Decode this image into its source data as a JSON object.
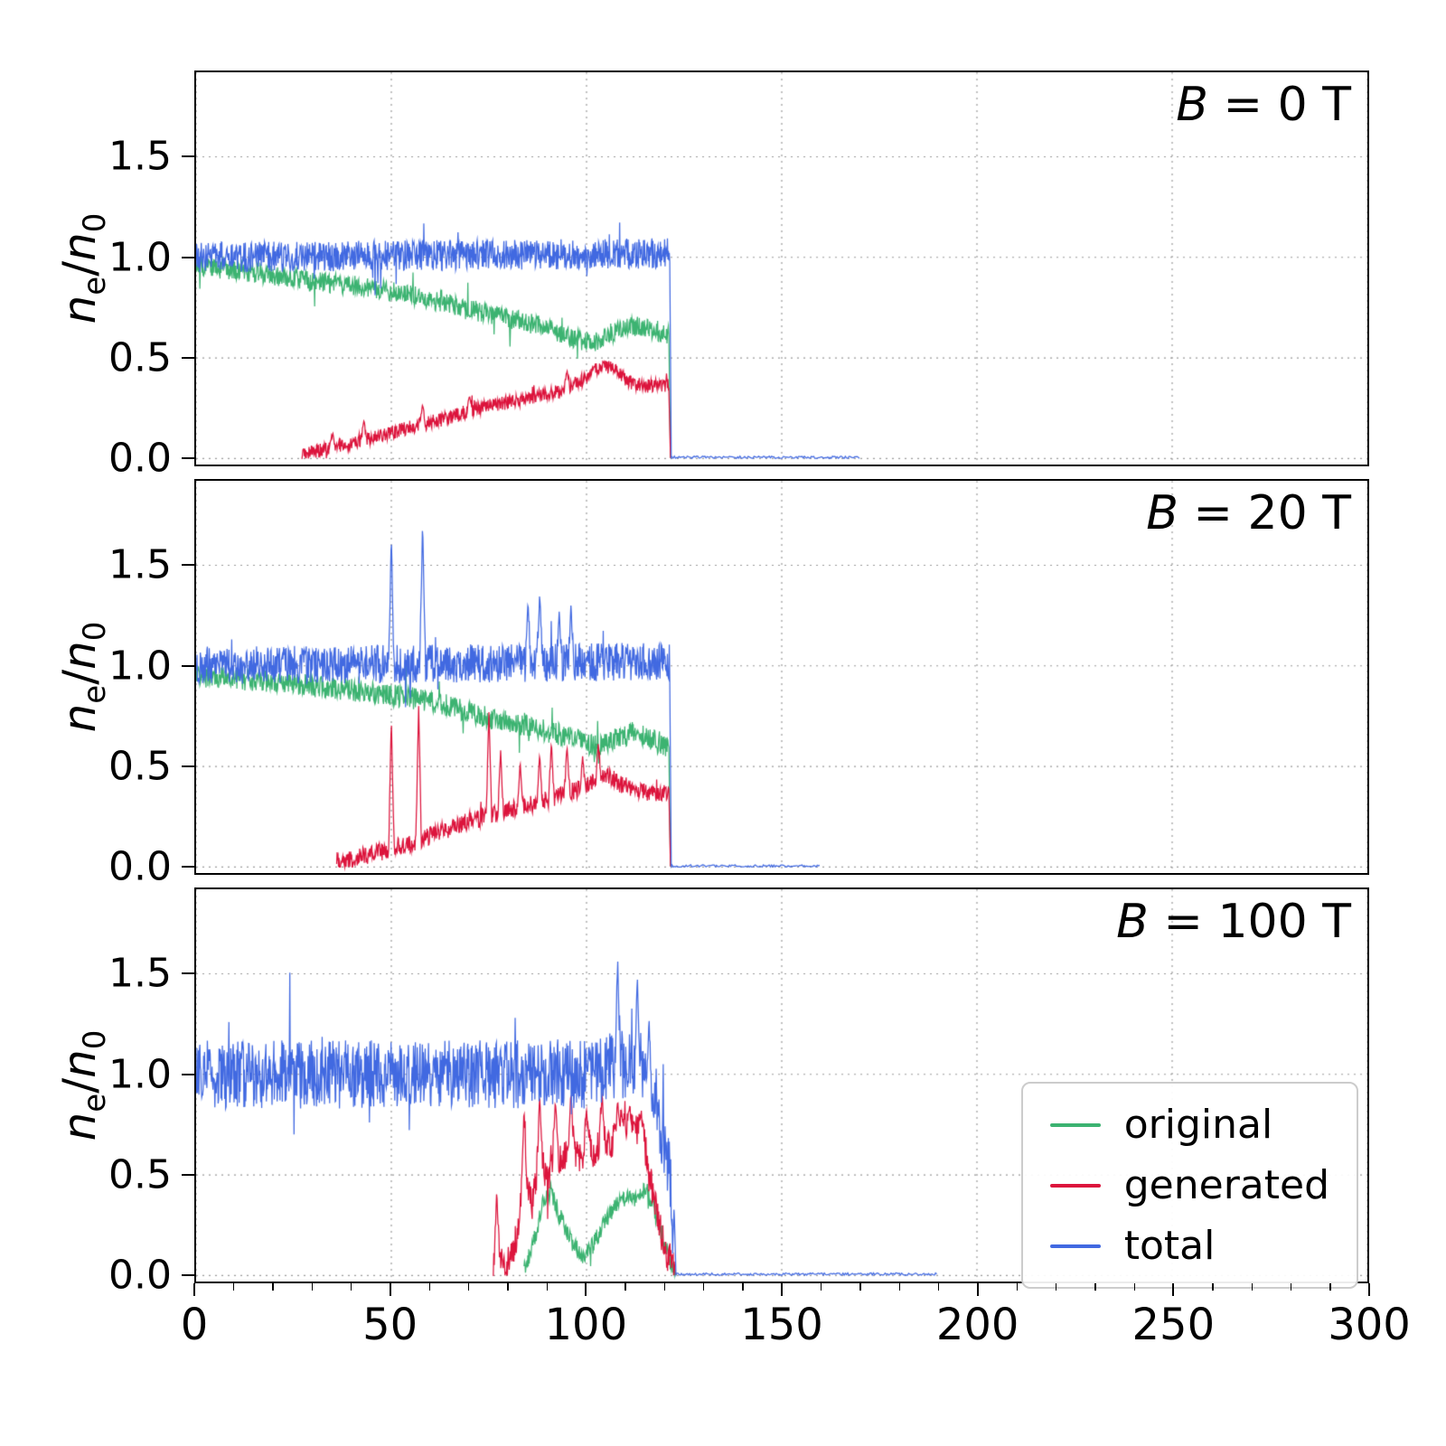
{
  "chart_data": {
    "type": "line",
    "title": "",
    "xlabel": "",
    "ylabel": {
      "n1": "n",
      "s1": "e",
      "sep": "/",
      "n2": "n",
      "s2": "0"
    },
    "xlim": [
      0,
      300
    ],
    "ylim": [
      -0.03,
      1.92
    ],
    "x_ticks": [
      0,
      50,
      100,
      150,
      200,
      250,
      300
    ],
    "x_minor_step": 10,
    "y_ticks": [
      0.0,
      0.5,
      1.0,
      1.5
    ],
    "grid": "dotted",
    "legend_position": "lower-right-of-bottom-panel",
    "legend": [
      {
        "label": "original",
        "color": "#3cb371"
      },
      {
        "label": "generated",
        "color": "#dc143c"
      },
      {
        "label": "total",
        "color": "#4169e1"
      }
    ],
    "panels": [
      {
        "annotation_var": "B",
        "annotation_rest": " = 0 T",
        "series": [
          {
            "name": "original",
            "color": "#3cb371",
            "start": 0,
            "cutoff": 121.2,
            "noise": 0.05,
            "envelope": [
              [
                0,
                0.96
              ],
              [
                15,
                0.92
              ],
              [
                30,
                0.88
              ],
              [
                45,
                0.85
              ],
              [
                60,
                0.79
              ],
              [
                75,
                0.72
              ],
              [
                88,
                0.66
              ],
              [
                96,
                0.6
              ],
              [
                101,
                0.57
              ],
              [
                106,
                0.62
              ],
              [
                112,
                0.66
              ],
              [
                117,
                0.64
              ],
              [
                121,
                0.62
              ]
            ],
            "spikes": []
          },
          {
            "name": "generated",
            "color": "#dc143c",
            "start": 27,
            "cutoff": 121.2,
            "noise": 0.035,
            "envelope": [
              [
                27,
                0.01
              ],
              [
                33,
                0.05
              ],
              [
                40,
                0.08
              ],
              [
                48,
                0.12
              ],
              [
                56,
                0.16
              ],
              [
                64,
                0.2
              ],
              [
                72,
                0.25
              ],
              [
                80,
                0.28
              ],
              [
                88,
                0.31
              ],
              [
                95,
                0.35
              ],
              [
                100,
                0.4
              ],
              [
                104,
                0.47
              ],
              [
                107,
                0.44
              ],
              [
                111,
                0.38
              ],
              [
                115,
                0.36
              ],
              [
                121,
                0.37
              ]
            ],
            "spikes": [
              [
                35,
                0.13
              ],
              [
                43,
                0.19
              ],
              [
                58,
                0.27
              ],
              [
                70,
                0.31
              ],
              [
                95,
                0.44
              ]
            ]
          },
          {
            "name": "total",
            "color": "#4169e1",
            "start": 0,
            "cutoff": 121.4,
            "noise": 0.075,
            "envelope": [
              [
                0,
                1.0
              ],
              [
                121,
                1.02
              ]
            ],
            "spikes": [],
            "tail": {
              "to": 170,
              "level": 0.006
            }
          }
        ]
      },
      {
        "annotation_var": "B",
        "annotation_rest": " = 20 T",
        "series": [
          {
            "name": "original",
            "color": "#3cb371",
            "start": 0,
            "cutoff": 121.2,
            "noise": 0.055,
            "envelope": [
              [
                0,
                0.95
              ],
              [
                20,
                0.92
              ],
              [
                40,
                0.88
              ],
              [
                55,
                0.84
              ],
              [
                65,
                0.8
              ],
              [
                75,
                0.74
              ],
              [
                85,
                0.7
              ],
              [
                95,
                0.65
              ],
              [
                102,
                0.6
              ],
              [
                107,
                0.63
              ],
              [
                112,
                0.67
              ],
              [
                117,
                0.63
              ],
              [
                121,
                0.58
              ]
            ],
            "spikes": []
          },
          {
            "name": "generated",
            "color": "#dc143c",
            "start": 36,
            "cutoff": 121.2,
            "noise": 0.045,
            "envelope": [
              [
                36,
                0.01
              ],
              [
                42,
                0.05
              ],
              [
                48,
                0.08
              ],
              [
                55,
                0.12
              ],
              [
                62,
                0.17
              ],
              [
                70,
                0.23
              ],
              [
                78,
                0.27
              ],
              [
                86,
                0.31
              ],
              [
                94,
                0.36
              ],
              [
                100,
                0.4
              ],
              [
                105,
                0.46
              ],
              [
                109,
                0.41
              ],
              [
                113,
                0.38
              ],
              [
                117,
                0.37
              ],
              [
                121,
                0.36
              ]
            ],
            "spikes": [
              [
                50,
                0.74
              ],
              [
                57,
                0.8
              ],
              [
                75,
                0.77
              ],
              [
                78,
                0.58
              ],
              [
                83,
                0.52
              ],
              [
                88,
                0.56
              ],
              [
                91,
                0.62
              ],
              [
                95,
                0.6
              ],
              [
                99,
                0.55
              ],
              [
                103,
                0.62
              ]
            ]
          },
          {
            "name": "total",
            "color": "#4169e1",
            "start": 0,
            "cutoff": 121.4,
            "noise": 0.095,
            "envelope": [
              [
                0,
                1.0
              ],
              [
                121,
                1.02
              ]
            ],
            "spikes": [
              [
                50,
                1.64
              ],
              [
                58,
                1.71
              ],
              [
                85,
                1.32
              ],
              [
                88,
                1.36
              ],
              [
                93,
                1.27
              ],
              [
                96,
                1.3
              ]
            ],
            "tail": {
              "to": 160,
              "level": 0.005
            }
          }
        ]
      },
      {
        "annotation_var": "B",
        "annotation_rest": " = 100 T",
        "series": [
          {
            "name": "original",
            "color": "#3cb371",
            "start": 84,
            "cutoff": 122.8,
            "noise": 0.045,
            "envelope": [
              [
                84,
                0.02
              ],
              [
                87,
                0.2
              ],
              [
                89,
                0.38
              ],
              [
                91,
                0.42
              ],
              [
                93,
                0.3
              ],
              [
                95,
                0.22
              ],
              [
                97,
                0.14
              ],
              [
                99,
                0.1
              ],
              [
                101,
                0.13
              ],
              [
                103,
                0.2
              ],
              [
                105,
                0.28
              ],
              [
                107,
                0.33
              ],
              [
                109,
                0.37
              ],
              [
                111,
                0.4
              ],
              [
                113,
                0.36
              ],
              [
                115,
                0.44
              ],
              [
                117,
                0.35
              ],
              [
                119,
                0.22
              ],
              [
                121,
                0.1
              ],
              [
                122.5,
                0.03
              ]
            ],
            "spikes": []
          },
          {
            "name": "generated",
            "color": "#dc143c",
            "start": 76,
            "cutoff": 122.5,
            "noise": 0.09,
            "envelope": [
              [
                76,
                0.02
              ],
              [
                78,
                0.1
              ],
              [
                80,
                0.06
              ],
              [
                82,
                0.2
              ],
              [
                84,
                0.5
              ],
              [
                86,
                0.35
              ],
              [
                88,
                0.6
              ],
              [
                90,
                0.5
              ],
              [
                92,
                0.65
              ],
              [
                94,
                0.55
              ],
              [
                96,
                0.7
              ],
              [
                98,
                0.55
              ],
              [
                100,
                0.68
              ],
              [
                102,
                0.6
              ],
              [
                104,
                0.72
              ],
              [
                106,
                0.62
              ],
              [
                108,
                0.75
              ],
              [
                110,
                0.78
              ],
              [
                112,
                0.72
              ],
              [
                114,
                0.76
              ],
              [
                116,
                0.5
              ],
              [
                118,
                0.3
              ],
              [
                120,
                0.14
              ],
              [
                122,
                0.04
              ]
            ],
            "spikes": [
              [
                77,
                0.42
              ],
              [
                84,
                0.82
              ],
              [
                88,
                0.88
              ],
              [
                92,
                0.86
              ],
              [
                96,
                0.9
              ],
              [
                100,
                0.82
              ],
              [
                104,
                0.9
              ],
              [
                108,
                0.86
              ],
              [
                111,
                0.84
              ],
              [
                114,
                0.8
              ]
            ]
          },
          {
            "name": "total",
            "color": "#4169e1",
            "start": 0,
            "cutoff": 122.6,
            "noise": 0.17,
            "envelope": [
              [
                0,
                1.0
              ],
              [
                100,
                1.0
              ],
              [
                108,
                1.05
              ],
              [
                114,
                1.05
              ],
              [
                118,
                0.85
              ],
              [
                121,
                0.55
              ],
              [
                122.5,
                0.25
              ]
            ],
            "spikes": [
              [
                108,
                1.56
              ],
              [
                113,
                1.49
              ],
              [
                116,
                1.28
              ]
            ],
            "tail": {
              "to": 190,
              "level": 0.007
            }
          }
        ]
      }
    ]
  }
}
